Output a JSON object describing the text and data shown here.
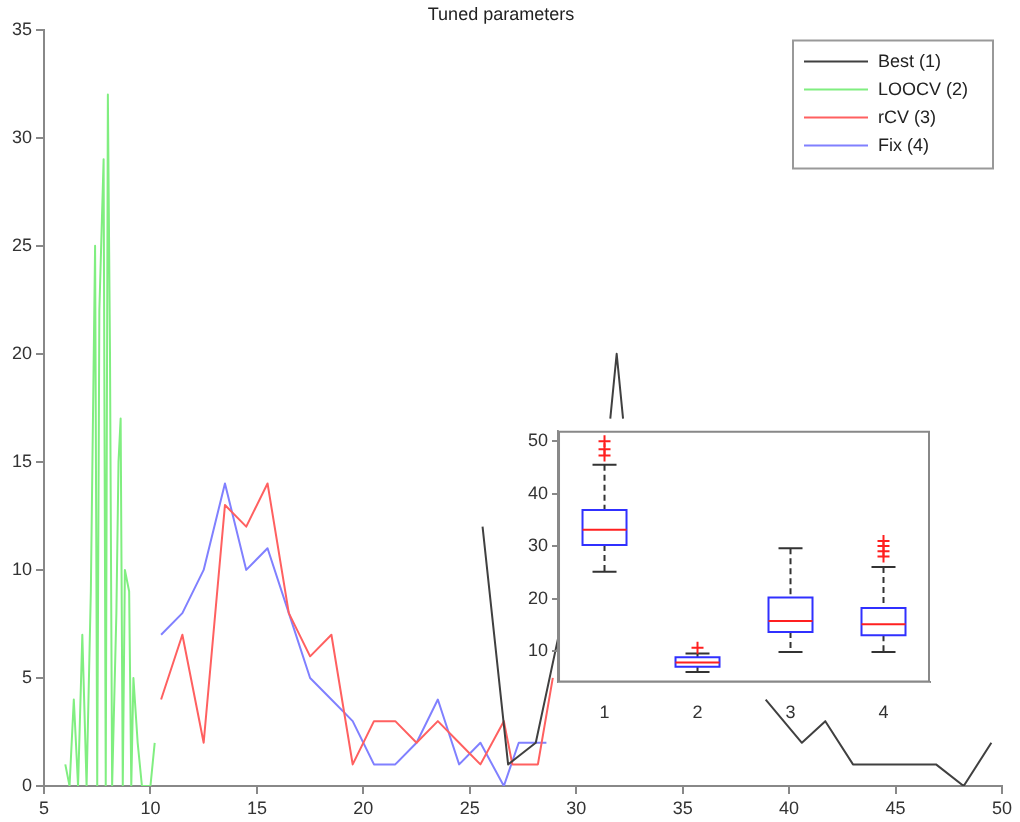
{
  "chart_data": [
    {
      "type": "line",
      "title": "Tuned parameters",
      "xlim": [
        5,
        50
      ],
      "xticks": [
        5,
        10,
        15,
        20,
        25,
        30,
        35,
        40,
        45,
        50
      ],
      "ylim": [
        0,
        35
      ],
      "yticks": [
        0,
        5,
        10,
        15,
        20,
        25,
        30,
        35
      ],
      "legend": "top right",
      "series": [
        {
          "name": "Best (1)",
          "color": "#404040",
          "x": [
            25.6,
            26.8,
            28.1,
            29.4,
            30.5,
            31.6,
            31.9,
            32.2,
            35,
            38.9,
            40.6,
            41.7,
            43,
            46.9,
            48.2,
            49.5
          ],
          "values": [
            12,
            1,
            2,
            8,
            null,
            17,
            20,
            17,
            null,
            4,
            2,
            3,
            1,
            1,
            0,
            2
          ]
        },
        {
          "name": "LOOCV (2)",
          "color": "#80ee80",
          "x": [
            6,
            6.2,
            6.4,
            6.6,
            6.8,
            7,
            7.2,
            7.4,
            7.5,
            7.6,
            7.8,
            7.9,
            8,
            8.1,
            8.2,
            8.4,
            8.5,
            8.6,
            8.7,
            8.8,
            9,
            9.1,
            9.2,
            9.4,
            9.6,
            9.8,
            10,
            10.2
          ],
          "values": [
            1,
            0,
            4,
            0,
            7,
            0,
            9,
            25,
            0,
            22,
            29,
            0,
            32,
            20,
            0,
            8,
            15,
            17,
            0,
            10,
            9,
            0,
            5,
            2,
            0,
            0,
            0,
            2
          ]
        },
        {
          "name": "rCV (3)",
          "color": "#ff6060",
          "x": [
            10.5,
            11.5,
            12.5,
            13.5,
            14.5,
            15.5,
            16.5,
            17.5,
            18.5,
            19.5,
            20.5,
            21.5,
            22.5,
            23.5,
            24.5,
            25.5,
            26.6,
            27,
            28.2,
            28.9
          ],
          "values": [
            4,
            7,
            2,
            13,
            12,
            14,
            8,
            6,
            7,
            1,
            3,
            3,
            2,
            3,
            2,
            1,
            3,
            1,
            1,
            5
          ]
        },
        {
          "name": "Fix (4)",
          "color": "#8080ff",
          "x": [
            10.5,
            11.5,
            12.5,
            13.5,
            14.5,
            15.5,
            16.5,
            17.5,
            18.5,
            19.5,
            20.5,
            21.5,
            22.5,
            23.5,
            24.5,
            25.5,
            26.6,
            27.3,
            28.6
          ],
          "values": [
            7,
            8,
            10,
            14,
            10,
            11,
            8,
            5,
            4,
            3,
            1,
            1,
            2,
            4,
            1,
            2,
            0,
            2,
            2
          ]
        }
      ]
    },
    {
      "type": "box",
      "categories": [
        "1",
        "2",
        "3",
        "4"
      ],
      "ylim": [
        4,
        52
      ],
      "yticks": [
        10,
        20,
        30,
        40,
        50
      ],
      "boxes": [
        {
          "low": 25.1,
          "q1": 30.2,
          "median": 33.1,
          "q3": 36.9,
          "high": 45.5,
          "outliers": [
            47.3,
            48.5,
            50
          ]
        },
        {
          "low": 6,
          "q1": 7,
          "median": 7.8,
          "q3": 8.8,
          "high": 9.5,
          "outliers": [
            10.6
          ]
        },
        {
          "low": 9.8,
          "q1": 13.6,
          "median": 15.7,
          "q3": 20.2,
          "high": 29.6
        },
        {
          "low": 9.8,
          "q1": 13,
          "median": 15.1,
          "q3": 18.2,
          "high": 26,
          "outliers": [
            28,
            29,
            30,
            31
          ]
        }
      ]
    }
  ]
}
